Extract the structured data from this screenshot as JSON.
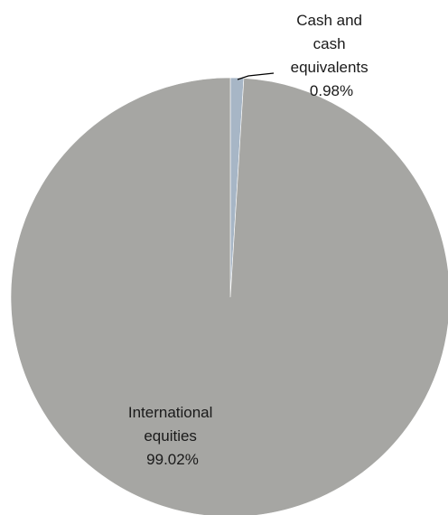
{
  "chart_data": {
    "type": "pie",
    "slices": [
      {
        "label_lines": [
          "Cash and",
          "cash",
          "equivalents"
        ],
        "value": 0.98,
        "value_label": "0.98%",
        "color": "#a7b6c6"
      },
      {
        "label_lines": [
          "International",
          "equities"
        ],
        "value": 99.02,
        "value_label": "99.02%",
        "color": "#a6a6a3"
      }
    ],
    "start": "12 o'clock",
    "direction": "clockwise",
    "legend": "none",
    "labels": "outside-or-inside with leader line"
  }
}
